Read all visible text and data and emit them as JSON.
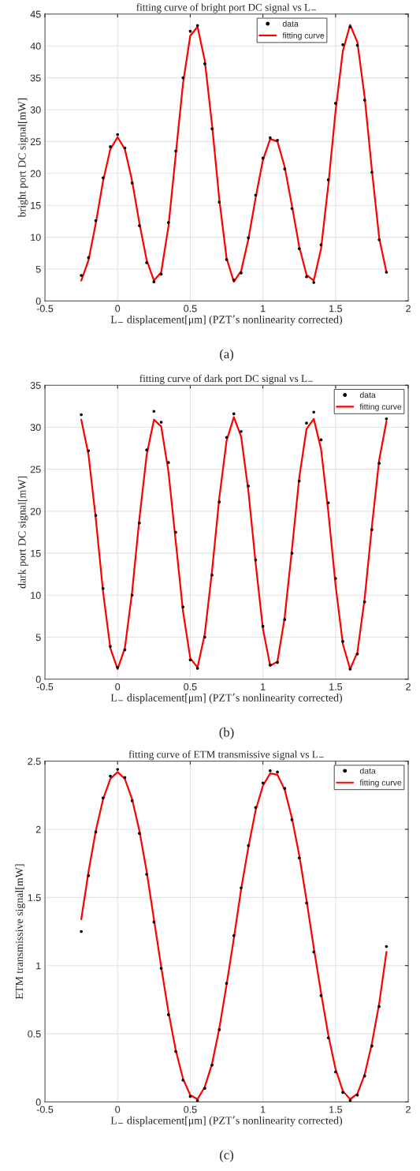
{
  "chart_data": [
    {
      "type": "line",
      "title": "fitting curve of bright port DC signal vs L$_{−}$",
      "xlabel": "L$_{−}$ displacement[μm] (PZT’s nonlinearity corrected)",
      "ylabel": "bright port DC signal[mW]",
      "annotations": [
        "(a)"
      ],
      "x": [
        -0.25,
        -0.2,
        -0.15,
        -0.1,
        -0.05,
        0,
        0.05,
        0.1,
        0.15,
        0.2,
        0.25,
        0.3,
        0.35,
        0.4,
        0.45,
        0.5,
        0.55,
        0.6,
        0.65,
        0.7,
        0.75,
        0.8,
        0.85,
        0.9,
        0.95,
        1,
        1.05,
        1.1,
        1.15,
        1.2,
        1.25,
        1.3,
        1.35,
        1.4,
        1.45,
        1.5,
        1.55,
        1.6,
        1.65,
        1.7,
        1.75,
        1.8,
        1.85
      ],
      "xlim": [
        -0.5,
        2
      ],
      "xticks": [
        -0.5,
        0,
        0.5,
        1,
        1.5,
        2
      ],
      "ylim": [
        0,
        45
      ],
      "yticks": [
        0,
        5,
        10,
        15,
        20,
        25,
        30,
        35,
        40,
        45
      ],
      "grid": true,
      "legend": "top",
      "series": [
        {
          "name": "data",
          "type": "scatter",
          "color": "#000000",
          "values": [
            4.0,
            6.8,
            12.6,
            19.3,
            24.2,
            26.1,
            24.0,
            18.5,
            11.8,
            6.0,
            3.0,
            4.2,
            12.3,
            23.5,
            35.0,
            42.3,
            43.2,
            37.2,
            27.0,
            15.5,
            6.5,
            3.3,
            4.4,
            9.9,
            16.6,
            22.4,
            25.6,
            25.2,
            20.7,
            14.5,
            8.2,
            3.8,
            2.9,
            8.8,
            19.0,
            31.0,
            40.2,
            43.0,
            40.1,
            31.5,
            20.2,
            9.6,
            4.5
          ]
        },
        {
          "name": "fitting curve",
          "color": "#ff0000",
          "values": [
            3.2,
            6.4,
            12.2,
            18.8,
            23.8,
            25.7,
            23.8,
            18.8,
            12.2,
            6.4,
            3.2,
            4.5,
            11.7,
            22.9,
            34.1,
            41.6,
            43.0,
            37.7,
            27.6,
            15.9,
            6.7,
            3.0,
            4.7,
            9.7,
            16.2,
            22.1,
            25.4,
            25.0,
            21.0,
            14.9,
            8.5,
            4.1,
            3.2,
            8.2,
            18.2,
            29.8,
            39.2,
            43.3,
            40.6,
            32.0,
            20.5,
            9.9,
            4.5
          ]
        }
      ]
    },
    {
      "type": "line",
      "title": "fitting curve of dark port DC signal vs L$_{−}$",
      "xlabel": "L$_{−}$ displacement[μm] (PZT’s nonlinearity corrected)",
      "ylabel": "dark port DC signal[mW]",
      "annotations": [
        "(b)"
      ],
      "x": [
        -0.25,
        -0.2,
        -0.15,
        -0.1,
        -0.05,
        0,
        0.05,
        0.1,
        0.15,
        0.2,
        0.25,
        0.3,
        0.35,
        0.4,
        0.45,
        0.5,
        0.55,
        0.6,
        0.65,
        0.7,
        0.75,
        0.8,
        0.85,
        0.9,
        0.95,
        1,
        1.05,
        1.1,
        1.15,
        1.2,
        1.25,
        1.3,
        1.35,
        1.4,
        1.45,
        1.5,
        1.55,
        1.6,
        1.65,
        1.7,
        1.75,
        1.8,
        1.85
      ],
      "xlim": [
        -0.5,
        2
      ],
      "xticks": [
        -0.5,
        0,
        0.5,
        1,
        1.5,
        2
      ],
      "ylim": [
        0,
        35
      ],
      "yticks": [
        0,
        5,
        10,
        15,
        20,
        25,
        30,
        35
      ],
      "grid": true,
      "legend": "top right",
      "series": [
        {
          "name": "data",
          "type": "scatter",
          "color": "#000000",
          "values": [
            31.5,
            27.2,
            19.5,
            10.8,
            3.9,
            1.4,
            3.5,
            10.0,
            18.6,
            27.3,
            31.9,
            30.6,
            25.8,
            17.5,
            8.6,
            2.3,
            1.3,
            5.0,
            12.4,
            21.1,
            28.8,
            31.6,
            29.5,
            23.0,
            14.2,
            6.3,
            1.7,
            2.0,
            7.1,
            15.0,
            23.6,
            30.5,
            31.8,
            28.5,
            21.0,
            12.0,
            4.5,
            1.2,
            3.0,
            9.2,
            17.8,
            25.7,
            31.0
          ]
        },
        {
          "name": "fitting curve",
          "color": "#ff0000",
          "values": [
            30.9,
            26.7,
            19.1,
            10.4,
            3.7,
            1.2,
            3.7,
            10.4,
            19.1,
            26.7,
            30.9,
            30.1,
            24.7,
            16.4,
            8.1,
            2.5,
            1.4,
            5.4,
            12.9,
            21.6,
            28.4,
            31.2,
            28.9,
            22.4,
            13.8,
            6.0,
            1.6,
            2.1,
            7.4,
            15.5,
            24.0,
            29.8,
            31.0,
            27.4,
            19.9,
            11.2,
            4.2,
            1.2,
            3.2,
            9.6,
            18.2,
            26.1,
            30.7
          ]
        }
      ]
    },
    {
      "type": "line",
      "title": "fitting curve of ETM transmissive signal vs L$_{−}$",
      "xlabel": "L$_{−}$ displacement[μm] (PZT’s nonlinearity corrected)",
      "ylabel": "ETM transmissive signal[mW]",
      "annotations": [
        "(c)"
      ],
      "x": [
        -0.25,
        -0.2,
        -0.15,
        -0.1,
        -0.05,
        0,
        0.05,
        0.1,
        0.15,
        0.2,
        0.25,
        0.3,
        0.35,
        0.4,
        0.45,
        0.5,
        0.55,
        0.6,
        0.65,
        0.7,
        0.75,
        0.8,
        0.85,
        0.9,
        0.95,
        1,
        1.05,
        1.1,
        1.15,
        1.2,
        1.25,
        1.3,
        1.35,
        1.4,
        1.45,
        1.5,
        1.55,
        1.6,
        1.65,
        1.7,
        1.75,
        1.8,
        1.85
      ],
      "xlim": [
        -0.5,
        2
      ],
      "xticks": [
        -0.5,
        0,
        0.5,
        1,
        1.5,
        2
      ],
      "ylim": [
        0,
        2.5
      ],
      "yticks": [
        0,
        0.5,
        1,
        1.5,
        2,
        2.5
      ],
      "grid": true,
      "legend": "top right",
      "series": [
        {
          "name": "data",
          "type": "scatter",
          "color": "#000000",
          "values": [
            1.25,
            1.66,
            1.98,
            2.23,
            2.39,
            2.44,
            2.38,
            2.21,
            1.97,
            1.67,
            1.32,
            0.98,
            0.64,
            0.37,
            0.16,
            0.04,
            0.01,
            0.1,
            0.27,
            0.53,
            0.87,
            1.22,
            1.57,
            1.88,
            2.16,
            2.34,
            2.43,
            2.42,
            2.3,
            2.07,
            1.79,
            1.46,
            1.1,
            0.78,
            0.47,
            0.22,
            0.07,
            0.01,
            0.05,
            0.19,
            0.41,
            0.7,
            1.14
          ]
        },
        {
          "name": "fitting curve",
          "color": "#ff0000",
          "values": [
            1.34,
            1.69,
            1.99,
            2.22,
            2.37,
            2.42,
            2.37,
            2.22,
            1.99,
            1.69,
            1.34,
            0.99,
            0.66,
            0.38,
            0.17,
            0.05,
            0.02,
            0.11,
            0.28,
            0.54,
            0.86,
            1.2,
            1.56,
            1.87,
            2.14,
            2.32,
            2.41,
            2.4,
            2.29,
            2.08,
            1.81,
            1.48,
            1.13,
            0.8,
            0.49,
            0.24,
            0.08,
            0.02,
            0.06,
            0.2,
            0.43,
            0.72,
            1.1
          ]
        }
      ]
    }
  ]
}
